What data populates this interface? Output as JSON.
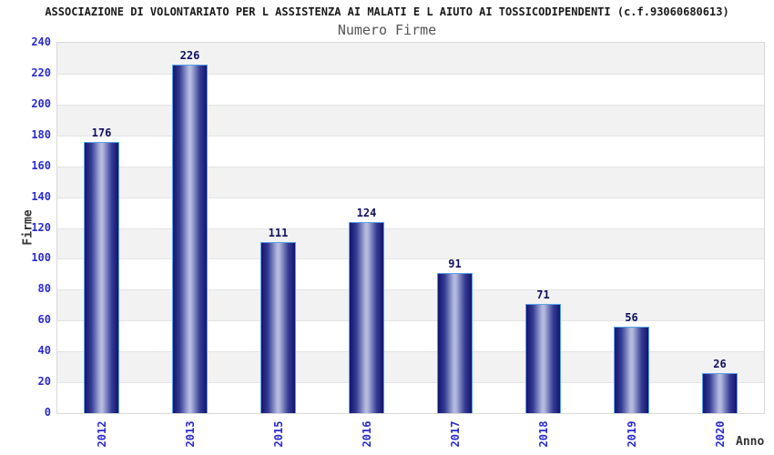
{
  "title": "ASSOCIAZIONE DI VOLONTARIATO PER L ASSISTENZA AI MALATI E L AIUTO AI TOSSICODIPENDENTI (c.f.93060680613)",
  "subtitle": "Numero Firme",
  "chart_data": {
    "type": "bar",
    "title": "Numero Firme",
    "categories": [
      "2012",
      "2013",
      "2015",
      "2016",
      "2017",
      "2018",
      "2019",
      "2020"
    ],
    "values": [
      176,
      226,
      111,
      124,
      91,
      71,
      56,
      26
    ],
    "xlabel": "Anno",
    "ylabel": "Firme",
    "ylim": [
      0,
      240
    ],
    "yticks": [
      0,
      20,
      40,
      60,
      80,
      100,
      120,
      140,
      160,
      180,
      200,
      220,
      240
    ],
    "grid": true,
    "legend": false,
    "bar_value_labels_shown": true,
    "band_pattern": "alternating gray/white horizontal stripes, gray band at top (220-240)"
  },
  "colors": {
    "title_text": "#1a1a1a",
    "subtitle_text": "#555555",
    "axis_tick_text": "#2a2ad0",
    "bar_value_text": "#10105f",
    "axis_title_text": "#333333",
    "bar_border": "#58a1e8",
    "bar_gradient_dark": "#14146f",
    "bar_gradient_mid": "#353c94",
    "bar_gradient_light": "#b4badf",
    "band_gray": "#f2f2f2",
    "band_white": "#ffffff",
    "gridline": "#e3e3e3",
    "plot_border": "#d9d9d9"
  }
}
